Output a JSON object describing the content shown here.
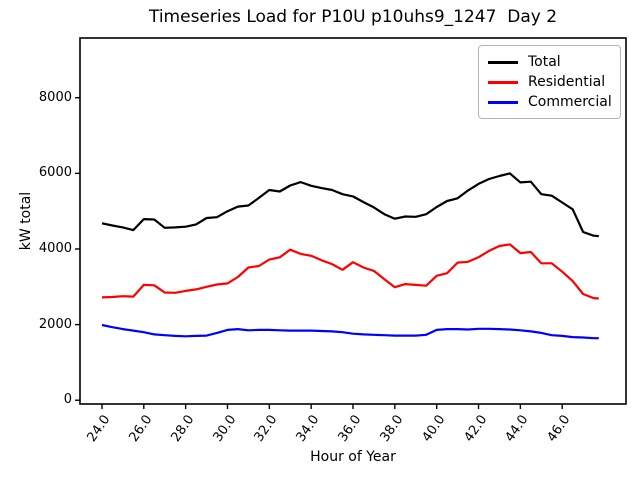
{
  "chart_data": {
    "type": "line",
    "title": "Timeseries Load for P10U p10uhs9_1247  Day 2",
    "xlabel": "Hour of Year",
    "ylabel": "kW total",
    "grid": false,
    "legend_position": "upper right",
    "xlim": [
      22.95,
      49.05
    ],
    "ylim": [
      -100,
      9580
    ],
    "xtick_values": [
      24,
      26,
      28,
      30,
      32,
      34,
      36,
      38,
      40,
      42,
      44,
      46
    ],
    "xtick_labels": [
      "24.0",
      "26.0",
      "28.0",
      "30.0",
      "32.0",
      "34.0",
      "36.0",
      "38.0",
      "40.0",
      "42.0",
      "44.0",
      "46.0"
    ],
    "ytick_values": [
      0,
      2000,
      4000,
      6000,
      8000
    ],
    "ytick_labels": [
      "0",
      "2000",
      "4000",
      "6000",
      "8000"
    ],
    "x": [
      24.0,
      24.5,
      25.0,
      25.5,
      26.0,
      26.5,
      27.0,
      27.5,
      28.0,
      28.5,
      29.0,
      29.5,
      30.0,
      30.5,
      31.0,
      31.5,
      32.0,
      32.5,
      33.0,
      33.5,
      34.0,
      34.5,
      35.0,
      35.5,
      36.0,
      36.5,
      37.0,
      37.5,
      38.0,
      38.5,
      39.0,
      39.5,
      40.0,
      40.5,
      41.0,
      41.5,
      42.0,
      42.5,
      43.0,
      43.5,
      44.0,
      44.5,
      45.0,
      45.5,
      46.0,
      46.5,
      47.0,
      47.5,
      47.75
    ],
    "series": [
      {
        "name": "Total",
        "color": "#000000",
        "values": [
          4680,
          4620,
          4570,
          4500,
          4790,
          4780,
          4560,
          4570,
          4590,
          4650,
          4820,
          4840,
          5000,
          5120,
          5150,
          5350,
          5560,
          5520,
          5680,
          5770,
          5670,
          5610,
          5560,
          5450,
          5390,
          5240,
          5100,
          4920,
          4800,
          4860,
          4850,
          4920,
          5110,
          5270,
          5340,
          5550,
          5720,
          5850,
          5930,
          6000,
          5760,
          5780,
          5450,
          5410,
          5230,
          5050,
          4450,
          4350,
          4340
        ]
      },
      {
        "name": "Residential",
        "color": "#ff0000",
        "values": [
          2720,
          2730,
          2750,
          2740,
          3050,
          3040,
          2850,
          2840,
          2890,
          2930,
          3000,
          3060,
          3090,
          3260,
          3510,
          3550,
          3720,
          3780,
          3980,
          3870,
          3820,
          3700,
          3600,
          3450,
          3650,
          3510,
          3420,
          3200,
          2990,
          3070,
          3050,
          3030,
          3290,
          3360,
          3640,
          3660,
          3780,
          3950,
          4080,
          4120,
          3890,
          3920,
          3620,
          3620,
          3400,
          3150,
          2810,
          2700,
          2690
        ]
      },
      {
        "name": "Commercial",
        "color": "#0000ff",
        "values": [
          1990,
          1930,
          1880,
          1840,
          1800,
          1740,
          1720,
          1700,
          1690,
          1700,
          1710,
          1780,
          1860,
          1880,
          1850,
          1860,
          1860,
          1850,
          1840,
          1840,
          1840,
          1830,
          1820,
          1800,
          1760,
          1740,
          1730,
          1720,
          1710,
          1710,
          1710,
          1730,
          1860,
          1880,
          1880,
          1870,
          1890,
          1890,
          1880,
          1870,
          1850,
          1820,
          1780,
          1720,
          1700,
          1670,
          1660,
          1640,
          1640
        ]
      }
    ]
  }
}
